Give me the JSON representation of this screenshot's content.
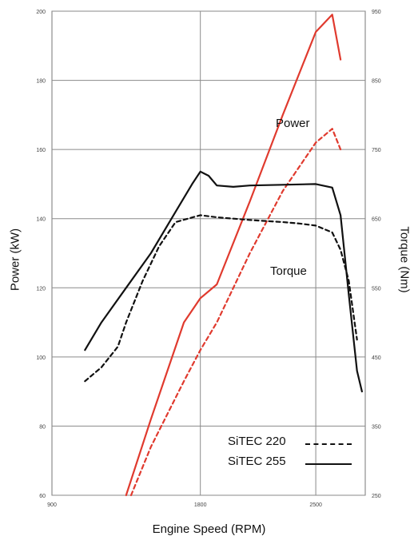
{
  "chart_data": {
    "type": "line",
    "xlabel": "Engine Speed (RPM)",
    "ylabel": "Power (kW)",
    "ylabel_right": "Torque (Nm)",
    "x_ticks": [
      "900",
      "1800",
      "2500"
    ],
    "y_ticks": [
      "60",
      "80",
      "100",
      "120",
      "140",
      "160",
      "180",
      "200"
    ],
    "y2_ticks": [
      "250",
      "350",
      "450",
      "550",
      "650",
      "750",
      "850",
      "950"
    ],
    "xlim": [
      900,
      2800
    ],
    "ylim": [
      60,
      200
    ],
    "y2lim": [
      250,
      950
    ],
    "grid": true,
    "annotations": {
      "power": "Power",
      "torque": "Torque"
    },
    "legend": {
      "position": "bottom-right",
      "entries": [
        {
          "label": "SiTEC 220",
          "style": "dashed"
        },
        {
          "label": "SiTEC 255",
          "style": "solid"
        }
      ]
    },
    "colors": {
      "power": "#e03a2e",
      "torque": "#111111",
      "grid": "#8a8a8a"
    },
    "series": [
      {
        "legend": "SiTEC 255",
        "quantity": "power",
        "axis": "left",
        "style": "solid",
        "x": [
          1350,
          1500,
          1700,
          1800,
          1900,
          2100,
          2300,
          2500,
          2600,
          2650
        ],
        "y": [
          60,
          82,
          110,
          117,
          121,
          145,
          170,
          194,
          199,
          186
        ]
      },
      {
        "legend": "SiTEC 220",
        "quantity": "power",
        "axis": "left",
        "style": "dashed",
        "x": [
          1380,
          1500,
          1700,
          1800,
          1900,
          2100,
          2300,
          2500,
          2600,
          2650
        ],
        "y": [
          60,
          74,
          93,
          102,
          110,
          130,
          148,
          162,
          166,
          160
        ]
      },
      {
        "legend": "SiTEC 255",
        "quantity": "torque",
        "axis": "right",
        "style": "solid",
        "x": [
          1100,
          1200,
          1350,
          1500,
          1650,
          1750,
          1800,
          1850,
          1900,
          2000,
          2100,
          2300,
          2500,
          2600,
          2650,
          2700,
          2750,
          2780
        ],
        "y": [
          460,
          500,
          550,
          600,
          660,
          700,
          718,
          712,
          698,
          696,
          698,
          699,
          700,
          695,
          655,
          540,
          430,
          400
        ]
      },
      {
        "legend": "SiTEC 220",
        "quantity": "torque",
        "axis": "right",
        "style": "dashed",
        "x": [
          1100,
          1200,
          1300,
          1350,
          1450,
          1550,
          1650,
          1800,
          1900,
          2000,
          2100,
          2300,
          2400,
          2500,
          2600,
          2650,
          2700,
          2750
        ],
        "y": [
          415,
          435,
          465,
          500,
          560,
          610,
          645,
          655,
          652,
          650,
          648,
          645,
          643,
          640,
          630,
          605,
          560,
          475
        ]
      }
    ]
  }
}
